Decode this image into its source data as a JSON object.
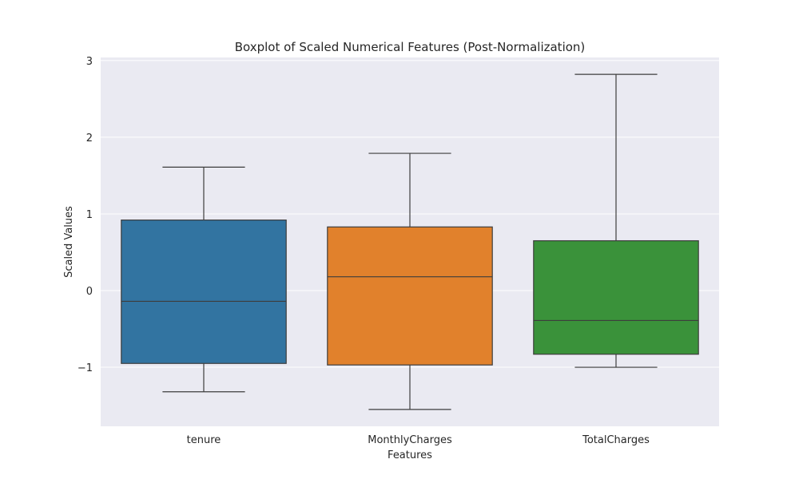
{
  "chart_data": {
    "type": "boxplot",
    "title": "Boxplot of Scaled Numerical Features (Post-Normalization)",
    "xlabel": "Features",
    "ylabel": "Scaled Values",
    "categories": [
      "tenure",
      "MonthlyCharges",
      "TotalCharges"
    ],
    "ylim": [
      -1.77,
      3.04
    ],
    "yticks": [
      -1,
      0,
      1,
      2,
      3
    ],
    "ytick_labels": [
      "−1",
      "0",
      "1",
      "2",
      "3"
    ],
    "grid": true,
    "series": [
      {
        "category": "tenure",
        "whisker_low": -1.32,
        "q1": -0.95,
        "median": -0.14,
        "q3": 0.92,
        "whisker_high": 1.61,
        "color": "#3274a1"
      },
      {
        "category": "MonthlyCharges",
        "whisker_low": -1.55,
        "q1": -0.97,
        "median": 0.18,
        "q3": 0.83,
        "whisker_high": 1.79,
        "color": "#e1812c"
      },
      {
        "category": "TotalCharges",
        "whisker_low": -1.0,
        "q1": -0.83,
        "median": -0.39,
        "q3": 0.65,
        "whisker_high": 2.82,
        "color": "#3a923a"
      }
    ],
    "colors": {
      "plot_background": "#eaeaf2",
      "grid": "#ffffff",
      "box_edge": "#3d3d3d"
    }
  }
}
